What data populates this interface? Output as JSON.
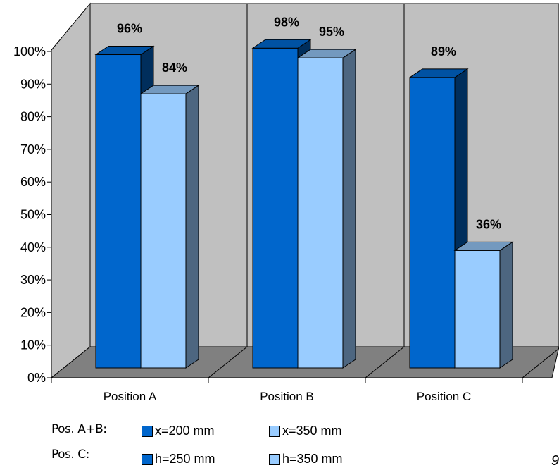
{
  "chart_data": {
    "type": "bar",
    "three_d": true,
    "categories": [
      "Position A",
      "Position B",
      "Position C"
    ],
    "series": [
      {
        "values": [
          96,
          98,
          89
        ],
        "data_labels": [
          "96%",
          "98%",
          "89%"
        ],
        "color": "#0066cc"
      },
      {
        "values": [
          84,
          95,
          36
        ],
        "data_labels": [
          "84%",
          "95%",
          "36%"
        ],
        "color": "#99ccff"
      }
    ],
    "y_ticks": [
      "0%",
      "10%",
      "20%",
      "30%",
      "40%",
      "50%",
      "60%",
      "70%",
      "80%",
      "90%",
      "100%"
    ],
    "ylim": [
      0,
      100
    ],
    "grid": false,
    "wall_color": "#c0c0c0",
    "floor_color": "#808080",
    "legend_placement": "bottom",
    "legend": {
      "rows": [
        {
          "label": "Pos. A+B:",
          "items": [
            "x=200 mm",
            "x=350 mm"
          ]
        },
        {
          "label": "Pos. C:",
          "items": [
            "h=250 mm",
            "h=350 mm"
          ]
        }
      ]
    },
    "corner_text": "9"
  }
}
